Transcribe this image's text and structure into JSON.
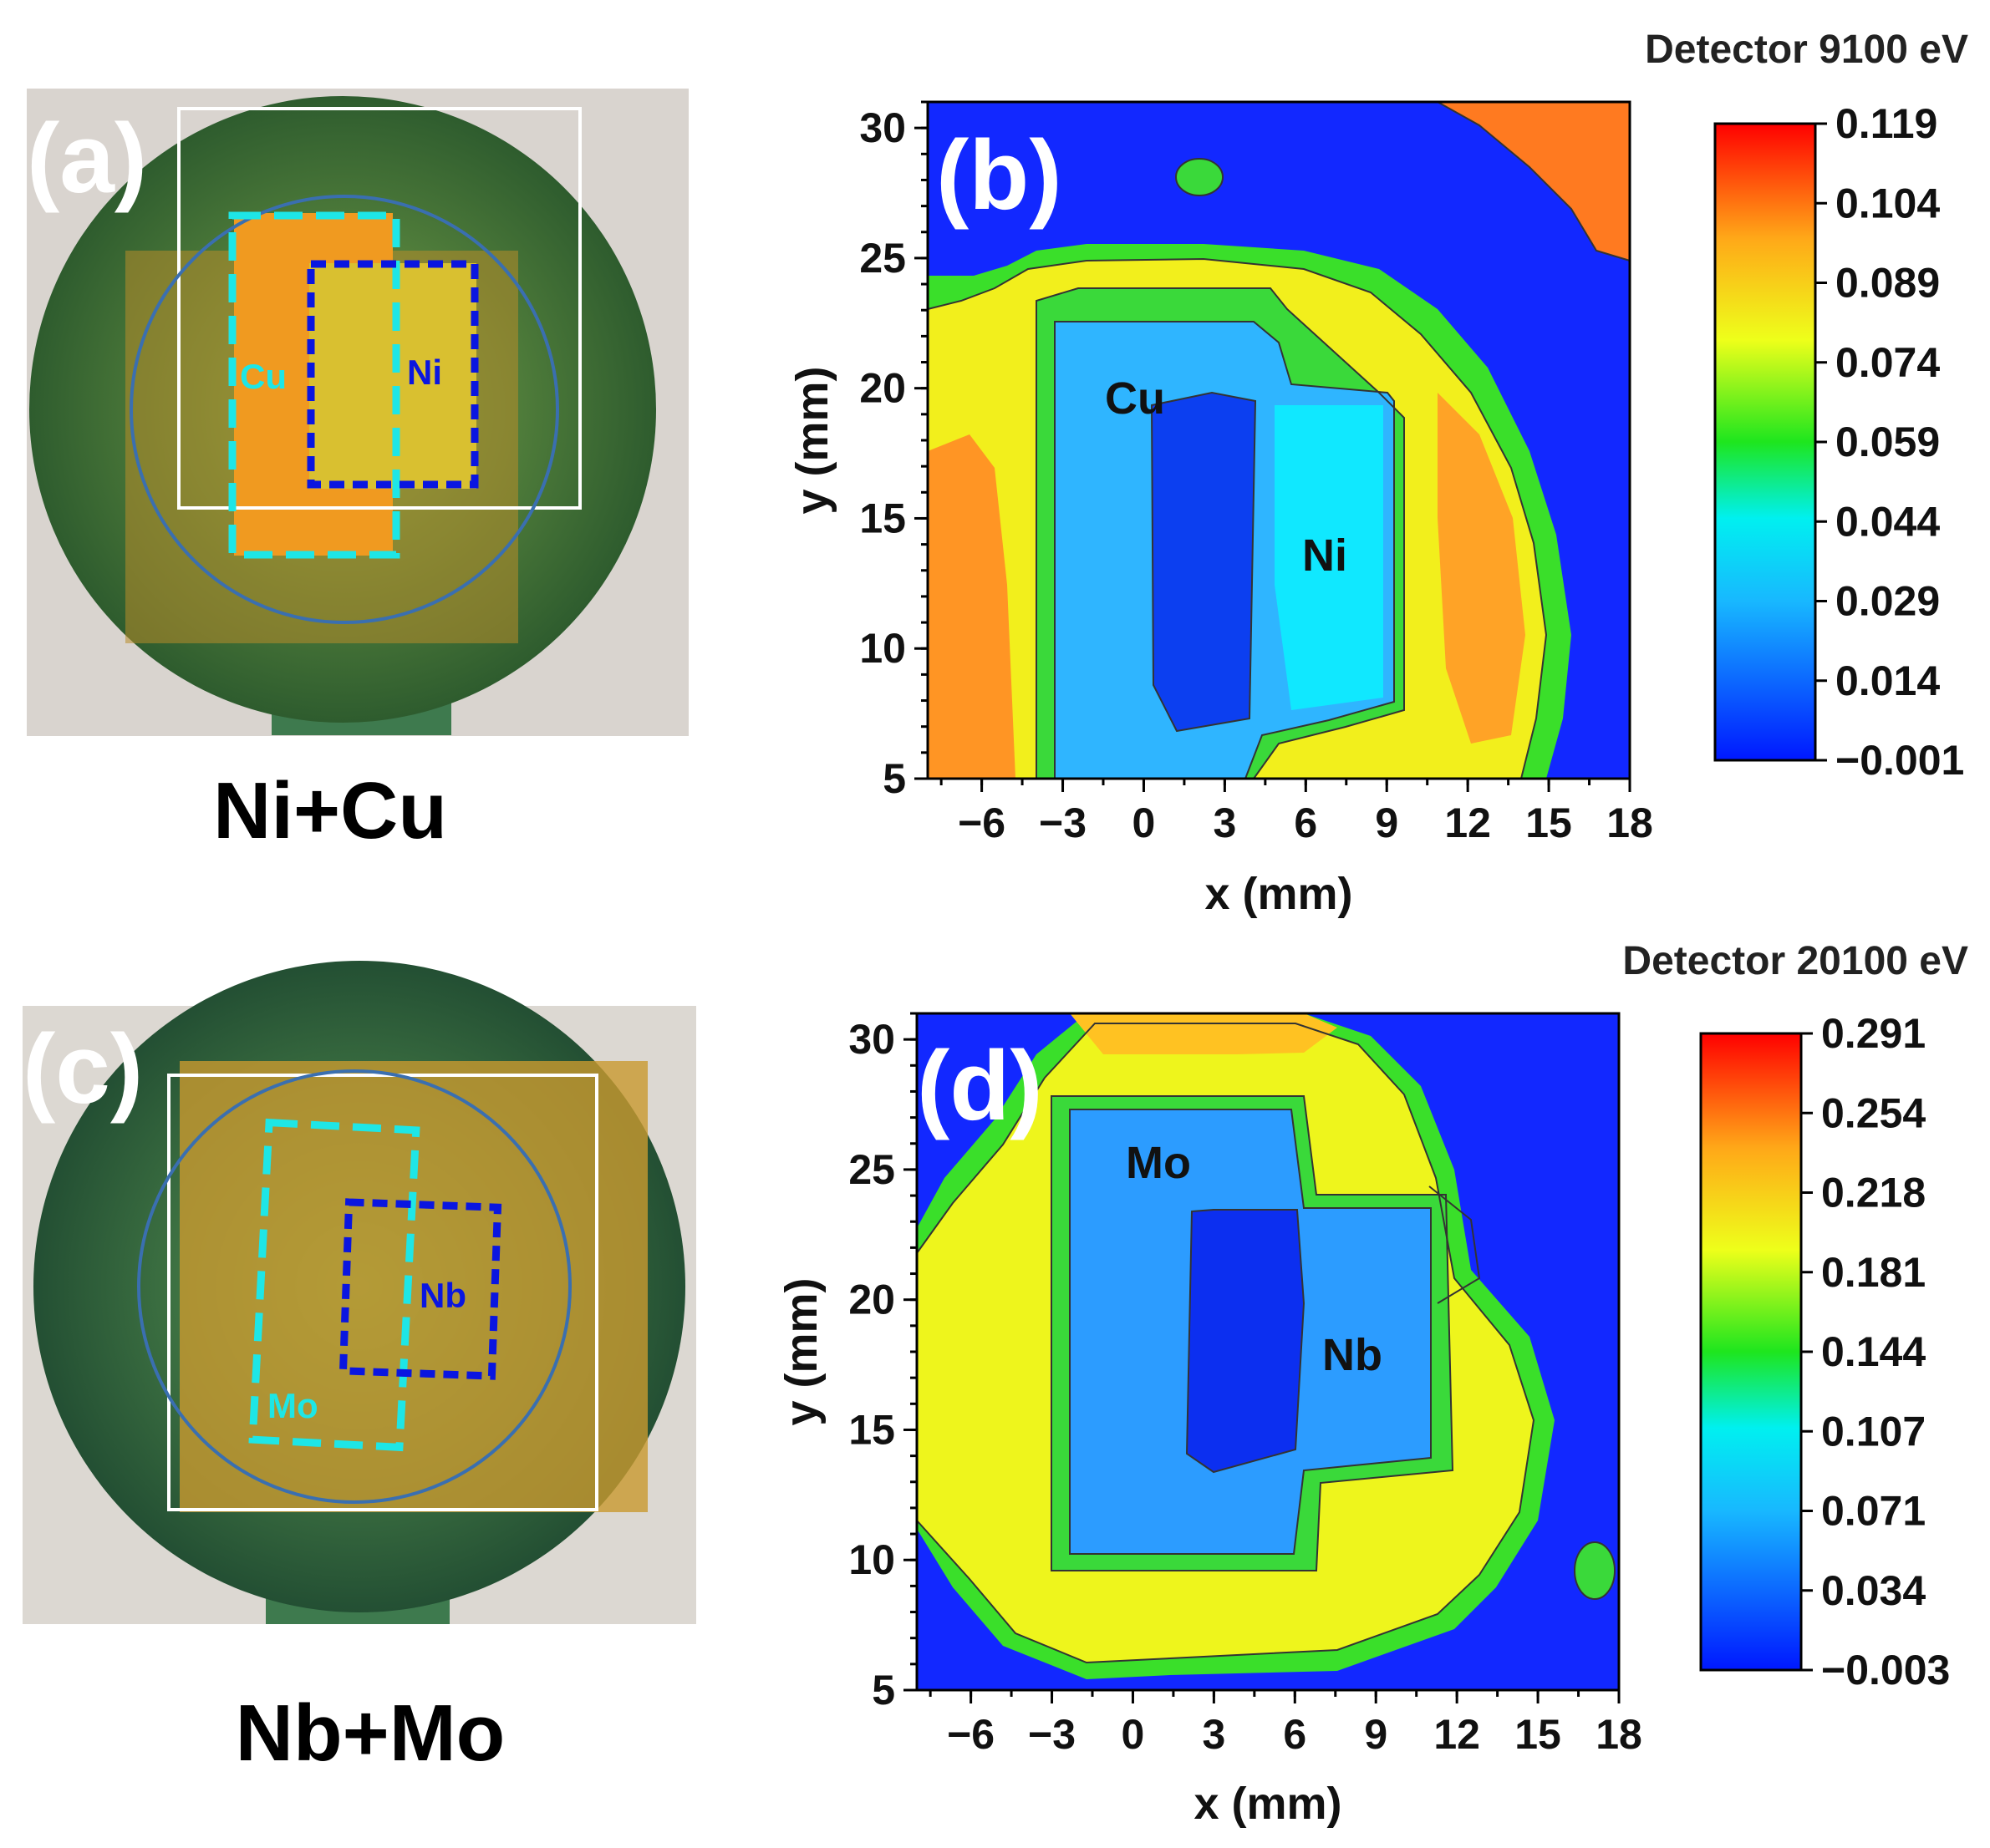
{
  "panels": {
    "a": {
      "letter": "(a)",
      "caption": "Ni+Cu",
      "region_labels": [
        "Cu",
        "Ni"
      ]
    },
    "c": {
      "letter": "(c)",
      "caption": "Nb+Mo",
      "region_labels": [
        "Mo",
        "Nb"
      ]
    }
  },
  "colors": {
    "map_low": "#0a2bff",
    "map_mid": "#ffff00",
    "map_high": "#ff0000",
    "cyan_box": "#1ee6e6",
    "blue_box": "#0a16e0",
    "circle": "#3a6fb0"
  },
  "chart_data": [
    {
      "type": "heatmap",
      "panel": "(b)",
      "title": "Detector 9100 eV",
      "xlabel": "x (mm)",
      "ylabel": "y (mm)",
      "xlim": [
        -8,
        18
      ],
      "ylim": [
        5,
        31
      ],
      "xticks": [
        -6,
        -3,
        0,
        3,
        6,
        9,
        12,
        15,
        18
      ],
      "yticks": [
        5,
        10,
        15,
        20,
        25,
        30
      ],
      "colorbar": {
        "min": -0.001,
        "max": 0.119,
        "ticks": [
          "0.119",
          "0.104",
          "0.089",
          "0.074",
          "0.059",
          "0.044",
          "0.029",
          "0.014",
          "−0.001"
        ]
      },
      "annotations": [
        "Cu",
        "Ni"
      ]
    },
    {
      "type": "heatmap",
      "panel": "(d)",
      "title": "Detector 20100 eV",
      "xlabel": "x (mm)",
      "ylabel": "y (mm)",
      "xlim": [
        -8,
        18
      ],
      "ylim": [
        5,
        31
      ],
      "xticks": [
        -6,
        -3,
        0,
        3,
        6,
        9,
        12,
        15,
        18
      ],
      "yticks": [
        5,
        10,
        15,
        20,
        25,
        30
      ],
      "colorbar": {
        "min": -0.003,
        "max": 0.291,
        "ticks": [
          "0.291",
          "0.254",
          "0.218",
          "0.181",
          "0.144",
          "0.107",
          "0.071",
          "0.034",
          "−0.003"
        ]
      },
      "annotations": [
        "Mo",
        "Nb"
      ]
    }
  ]
}
